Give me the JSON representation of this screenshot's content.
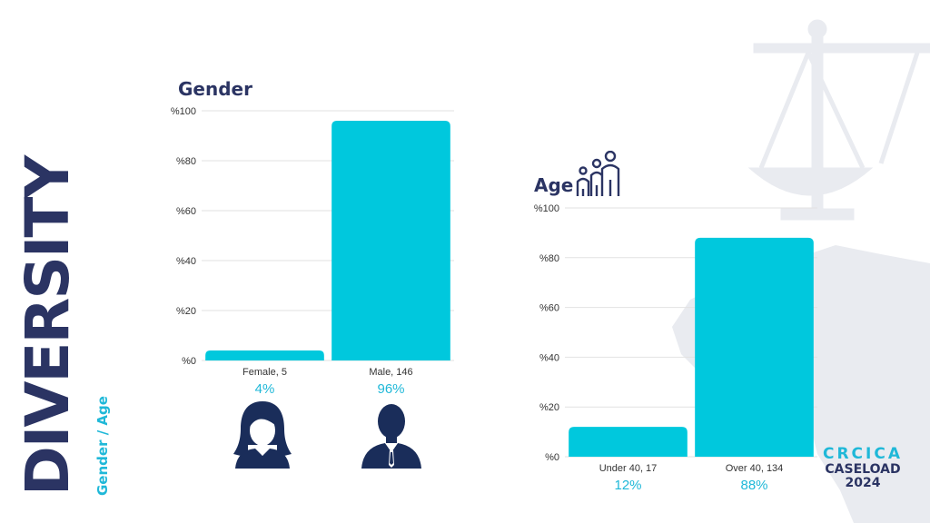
{
  "slide": {
    "title": "DIVERSITY",
    "subtitle": "Gender / Age",
    "logo": {
      "brand": "CRCICA",
      "line1": "CASELOAD",
      "line2": "2024"
    },
    "icons": [
      "scales-of-justice-icon",
      "africa-map-icon",
      "family-icon",
      "female-avatar-icon",
      "male-avatar-icon"
    ]
  },
  "colors": {
    "bar": "#00c8dd",
    "navy": "#2b3463",
    "accent": "#1fb8d8",
    "tick": "#333333",
    "grid": "#e2e2e2",
    "bg_shape": "#e9ebf0"
  },
  "chart_data": [
    {
      "type": "bar",
      "title": "Gender",
      "ylabel": "",
      "xlabel": "",
      "ylim": [
        0,
        100
      ],
      "yticks": [
        "%0",
        "%20",
        "%40",
        "%60",
        "%80",
        "%100"
      ],
      "categories": [
        "Female, 5",
        "Male, 146"
      ],
      "values": [
        4,
        96
      ],
      "value_labels": [
        "4%",
        "96%"
      ]
    },
    {
      "type": "bar",
      "title": "Age",
      "ylabel": "",
      "xlabel": "",
      "ylim": [
        0,
        100
      ],
      "yticks": [
        "%0",
        "%20",
        "%40",
        "%60",
        "%80",
        "%100"
      ],
      "categories": [
        "Under 40, 17",
        "Over 40, 134"
      ],
      "values": [
        12,
        88
      ],
      "value_labels": [
        "12%",
        "88%"
      ]
    }
  ]
}
